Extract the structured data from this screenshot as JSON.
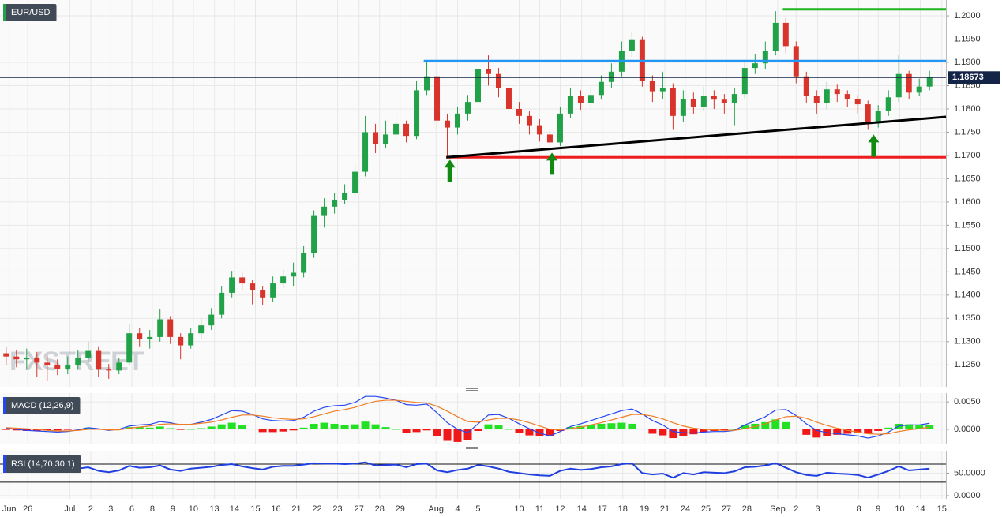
{
  "chart_data": [
    {
      "type": "candlestick",
      "label": "EUR/USD",
      "watermark": "FXSTREET",
      "up_color": "#21a148",
      "down_color": "#d9342b",
      "open": [
        1.1275,
        1.1268,
        1.1262,
        1.1265,
        1.1255,
        1.125,
        1.1242,
        1.125,
        1.1265,
        1.128,
        1.124,
        1.1238,
        1.1255,
        1.1318,
        1.1305,
        1.131,
        1.1348,
        1.131,
        1.1292,
        1.1318,
        1.1335,
        1.1358,
        1.1405,
        1.1438,
        1.1425,
        1.141,
        1.1395,
        1.1425,
        1.144,
        1.1448,
        1.149,
        1.157,
        1.159,
        1.1605,
        1.162,
        1.1665,
        1.175,
        1.1725,
        1.1745,
        1.1768,
        1.1742,
        1.184,
        1.187,
        1.1775,
        1.176,
        1.179,
        1.1815,
        1.1885,
        1.1875,
        1.1845,
        1.18,
        1.1785,
        1.1765,
        1.1745,
        1.1728,
        1.179,
        1.1828,
        1.1812,
        1.183,
        1.1858,
        1.188,
        1.1925,
        1.1948,
        1.186,
        1.1838,
        1.1845,
        1.1785,
        1.1822,
        1.1805,
        1.1828,
        1.182,
        1.1812,
        1.1832,
        1.1888,
        1.1898,
        1.1925,
        1.1985,
        1.1935,
        1.187,
        1.1828,
        1.1812,
        1.1842,
        1.1832,
        1.1822,
        1.181,
        1.1772,
        1.1795,
        1.1825,
        1.1875,
        1.1835,
        1.1848
      ],
      "high": [
        1.129,
        1.1282,
        1.1285,
        1.1278,
        1.127,
        1.1262,
        1.1268,
        1.1282,
        1.13,
        1.129,
        1.1252,
        1.1265,
        1.1338,
        1.133,
        1.1325,
        1.137,
        1.1355,
        1.1318,
        1.133,
        1.135,
        1.1372,
        1.142,
        1.1452,
        1.1448,
        1.1432,
        1.142,
        1.144,
        1.1455,
        1.147,
        1.1505,
        1.1582,
        1.1608,
        1.162,
        1.1638,
        1.168,
        1.1785,
        1.1768,
        1.1775,
        1.179,
        1.1775,
        1.186,
        1.1905,
        1.188,
        1.179,
        1.1805,
        1.183,
        1.19,
        1.1915,
        1.1888,
        1.1855,
        1.1815,
        1.1795,
        1.1778,
        1.1755,
        1.1805,
        1.1845,
        1.184,
        1.1848,
        1.1872,
        1.1898,
        1.1945,
        1.1965,
        1.1955,
        1.1872,
        1.188,
        1.1855,
        1.184,
        1.1835,
        1.1848,
        1.184,
        1.1832,
        1.1845,
        1.1905,
        1.1918,
        1.1945,
        1.201,
        1.1995,
        1.1945,
        1.188,
        1.184,
        1.1858,
        1.1852,
        1.184,
        1.183,
        1.1818,
        1.1808,
        1.184,
        1.1915,
        1.1882,
        1.1865,
        1.1882
      ],
      "low": [
        1.125,
        1.1245,
        1.124,
        1.1225,
        1.1215,
        1.1228,
        1.123,
        1.124,
        1.1255,
        1.1225,
        1.122,
        1.123,
        1.125,
        1.129,
        1.1285,
        1.13,
        1.1295,
        1.1262,
        1.1285,
        1.1305,
        1.1325,
        1.135,
        1.1395,
        1.141,
        1.138,
        1.1378,
        1.1385,
        1.1415,
        1.142,
        1.1438,
        1.148,
        1.1545,
        1.1575,
        1.1595,
        1.161,
        1.1655,
        1.1705,
        1.1715,
        1.173,
        1.1728,
        1.1735,
        1.183,
        1.1765,
        1.1695,
        1.1745,
        1.1775,
        1.1805,
        1.185,
        1.1825,
        1.1785,
        1.1768,
        1.1745,
        1.173,
        1.1712,
        1.172,
        1.178,
        1.1798,
        1.18,
        1.182,
        1.1845,
        1.187,
        1.1912,
        1.1848,
        1.1815,
        1.1822,
        1.1755,
        1.1772,
        1.179,
        1.1795,
        1.18,
        1.179,
        1.1765,
        1.1822,
        1.1875,
        1.1885,
        1.1915,
        1.192,
        1.1855,
        1.1812,
        1.179,
        1.18,
        1.1815,
        1.1805,
        1.179,
        1.1755,
        1.176,
        1.1785,
        1.1815,
        1.1822,
        1.1828,
        1.184
      ],
      "close": [
        1.1268,
        1.1262,
        1.1265,
        1.1255,
        1.125,
        1.1242,
        1.125,
        1.1265,
        1.128,
        1.124,
        1.1238,
        1.1255,
        1.1318,
        1.1305,
        1.131,
        1.1348,
        1.131,
        1.1292,
        1.1318,
        1.1335,
        1.1358,
        1.1405,
        1.1438,
        1.1425,
        1.141,
        1.1395,
        1.1425,
        1.144,
        1.1448,
        1.149,
        1.157,
        1.159,
        1.1605,
        1.162,
        1.1665,
        1.175,
        1.1725,
        1.1745,
        1.1768,
        1.1742,
        1.184,
        1.187,
        1.1775,
        1.176,
        1.179,
        1.1815,
        1.1885,
        1.1875,
        1.1845,
        1.18,
        1.1785,
        1.1765,
        1.1745,
        1.1728,
        1.179,
        1.1828,
        1.1812,
        1.183,
        1.1858,
        1.188,
        1.1925,
        1.1948,
        1.186,
        1.1838,
        1.1845,
        1.1785,
        1.1822,
        1.1805,
        1.1828,
        1.182,
        1.1812,
        1.1832,
        1.1888,
        1.1898,
        1.1925,
        1.1985,
        1.1935,
        1.187,
        1.1828,
        1.1812,
        1.1842,
        1.1832,
        1.1822,
        1.181,
        1.1772,
        1.1795,
        1.1825,
        1.1875,
        1.1835,
        1.1848,
        1.1868
      ],
      "xlim": [
        -0.6,
        91.6
      ],
      "xticks": [
        {
          "value": 0.3,
          "label": "Jun"
        },
        {
          "value": 2.1,
          "label": "26"
        },
        {
          "value": 6.2,
          "label": "Jul"
        },
        {
          "value": 8.25,
          "label": "2"
        },
        {
          "value": 10.2,
          "label": "3"
        },
        {
          "value": 12.25,
          "label": "6"
        },
        {
          "value": 14.25,
          "label": "8"
        },
        {
          "value": 16.25,
          "label": "9"
        },
        {
          "value": 18.25,
          "label": "10"
        },
        {
          "value": 20.3,
          "label": "13"
        },
        {
          "value": 22.25,
          "label": "14"
        },
        {
          "value": 24.3,
          "label": "15"
        },
        {
          "value": 26.3,
          "label": "16"
        },
        {
          "value": 28.3,
          "label": "21"
        },
        {
          "value": 30.3,
          "label": "22"
        },
        {
          "value": 32.3,
          "label": "23"
        },
        {
          "value": 34.4,
          "label": "27"
        },
        {
          "value": 36.4,
          "label": "28"
        },
        {
          "value": 38.4,
          "label": "29"
        },
        {
          "value": 41.9,
          "label": "Aug"
        },
        {
          "value": 44,
          "label": "4"
        },
        {
          "value": 46,
          "label": "5"
        },
        {
          "value": 50,
          "label": "10"
        },
        {
          "value": 52,
          "label": "11"
        },
        {
          "value": 54,
          "label": "12"
        },
        {
          "value": 56.1,
          "label": "14"
        },
        {
          "value": 58.1,
          "label": "17"
        },
        {
          "value": 60.1,
          "label": "18"
        },
        {
          "value": 62.2,
          "label": "19"
        },
        {
          "value": 64.2,
          "label": "21"
        },
        {
          "value": 66.2,
          "label": "24"
        },
        {
          "value": 68.2,
          "label": "25"
        },
        {
          "value": 70.2,
          "label": "27"
        },
        {
          "value": 72.2,
          "label": "28"
        },
        {
          "value": 75.2,
          "label": "Sep"
        },
        {
          "value": 77,
          "label": "2"
        },
        {
          "value": 79.1,
          "label": "3"
        },
        {
          "value": 83.1,
          "label": "8"
        },
        {
          "value": 85,
          "label": "9"
        },
        {
          "value": 87.1,
          "label": "10"
        },
        {
          "value": 89.1,
          "label": "14"
        },
        {
          "value": 91.2,
          "label": "15"
        }
      ],
      "ylim": [
        1.1203,
        1.2034
      ],
      "yticks": [
        {
          "value": 1.125,
          "label": "1.1250"
        },
        {
          "value": 1.13,
          "label": "1.1300"
        },
        {
          "value": 1.135,
          "label": "1.1350"
        },
        {
          "value": 1.14,
          "label": "1.1400"
        },
        {
          "value": 1.145,
          "label": "1.1450"
        },
        {
          "value": 1.15,
          "label": "1.1500"
        },
        {
          "value": 1.155,
          "label": "1.1550"
        },
        {
          "value": 1.16,
          "label": "1.1600"
        },
        {
          "value": 1.165,
          "label": "1.1650"
        },
        {
          "value": 1.17,
          "label": "1.1700"
        },
        {
          "value": 1.175,
          "label": "1.1750"
        },
        {
          "value": 1.18,
          "label": "1.1800"
        },
        {
          "value": 1.185,
          "label": "1.1850"
        },
        {
          "value": 1.19,
          "label": "1.1900"
        },
        {
          "value": 1.195,
          "label": "1.1950"
        },
        {
          "value": 1.2,
          "label": "1.2000"
        }
      ],
      "grid": true,
      "last_price": 1.18673,
      "last_price_color": "#142447",
      "lines": [
        {
          "x": [
            40.7,
            91.6
          ],
          "y": [
            1.1903,
            1.1903
          ],
          "color": "#2196f3"
        },
        {
          "x": [
            75.7,
            91.6
          ],
          "y": [
            1.2014,
            1.2014
          ],
          "color": "#1fb31f"
        },
        {
          "x": [
            42.9,
            91.6
          ],
          "y": [
            1.1696,
            1.1696
          ],
          "color": "#ee1c1c"
        },
        {
          "x": [
            42.9,
            91.6
          ],
          "y": [
            1.1696,
            1.1783
          ],
          "color": "#000000"
        }
      ],
      "arrows": [
        {
          "x": 43.25,
          "y": 1.1691
        },
        {
          "x": 53.2,
          "y": 1.1706
        },
        {
          "x": 84.55,
          "y": 1.1745
        }
      ],
      "arrow_color": "#118a11"
    },
    {
      "type": "macd",
      "label": "MACD (12,26,9)",
      "ylim": [
        -0.0026,
        0.0066
      ],
      "yticks": [
        {
          "value": 0.005,
          "label": "0.0050"
        },
        {
          "value": 0,
          "label": "0.0000"
        }
      ],
      "lines": [
        {
          "color": "#2547f0",
          "values": [
            0.0002,
            0,
            -0.0002,
            -0.0003,
            -0.0004,
            -0.0005,
            -0.0004,
            -0.0001,
            0.0003,
            0.0001,
            -0.0002,
            0,
            0.0006,
            0.0008,
            0.0009,
            0.0014,
            0.0012,
            0.0008,
            0.0009,
            0.0013,
            0.0018,
            0.0026,
            0.0034,
            0.0033,
            0.0027,
            0.0019,
            0.0016,
            0.0015,
            0.0016,
            0.0022,
            0.0033,
            0.004,
            0.0043,
            0.0044,
            0.0049,
            0.006,
            0.006,
            0.0057,
            0.0053,
            0.0045,
            0.0044,
            0.0046,
            0.003,
            0.0012,
            0,
            -0.0006,
            0.001,
            0.0026,
            0.0027,
            0.002,
            0.001,
            0.0001,
            -0.0007,
            -0.0012,
            -0.0004,
            0.0005,
            0.001,
            0.0016,
            0.0022,
            0.0028,
            0.0034,
            0.0037,
            0.0028,
            0.0016,
            0.0008,
            -0.0004,
            -0.0006,
            -0.0007,
            -0.0005,
            -0.0004,
            -0.0004,
            -0.0002,
            0.0008,
            0.0015,
            0.0023,
            0.0035,
            0.0036,
            0.0025,
            0.001,
            -0.0002,
            -0.0006,
            -0.0008,
            -0.001,
            -0.0012,
            -0.0016,
            -0.0012,
            -0.0005,
            0.0006,
            0.0008,
            0.0008,
            0.0011
          ]
        },
        {
          "color": "#f07c22",
          "values": [
            0.0003,
            0.0002,
            0.0001,
            0,
            -0.0002,
            -0.0003,
            -0.0003,
            -0.0002,
            0,
            0,
            -0.0001,
            -0.0001,
            0.0002,
            0.0004,
            0.0006,
            0.0009,
            0.001,
            0.0009,
            0.0009,
            0.0011,
            0.0013,
            0.0017,
            0.0022,
            0.0026,
            0.0026,
            0.0024,
            0.0021,
            0.0019,
            0.0018,
            0.0019,
            0.0023,
            0.0028,
            0.0033,
            0.0036,
            0.004,
            0.0046,
            0.0051,
            0.0053,
            0.0053,
            0.0051,
            0.0049,
            0.0048,
            0.0042,
            0.0033,
            0.0023,
            0.0014,
            0.0013,
            0.0017,
            0.002,
            0.002,
            0.0017,
            0.0012,
            0.0006,
            0,
            -0.0001,
            0.0001,
            0.0004,
            0.0008,
            0.0012,
            0.0017,
            0.0022,
            0.0027,
            0.0027,
            0.0024,
            0.0019,
            0.0012,
            0.0006,
            0.0002,
            0,
            -0.0001,
            -0.0002,
            -0.0002,
            0.0001,
            0.0005,
            0.001,
            0.0017,
            0.0023,
            0.0024,
            0.002,
            0.0013,
            0.0007,
            0.0002,
            -0.0002,
            -0.0005,
            -0.0008,
            -0.0009,
            -0.0008,
            -0.0004,
            -0.0001,
            0.0001,
            0.0004
          ]
        }
      ],
      "histogram": {
        "up_color": "#22e022",
        "down_color": "#f01818",
        "values": [
          -0.0001,
          -0.0002,
          -0.0003,
          -0.0003,
          -0.0002,
          -0.0002,
          -0.0001,
          0.0001,
          0.0003,
          0.0001,
          -0.0001,
          0.0001,
          0.0004,
          0.0004,
          0.0003,
          0.0005,
          0.0002,
          -0.0001,
          0,
          0.0002,
          0.0005,
          0.0009,
          0.0012,
          0.0007,
          0.0001,
          -0.0005,
          -0.0005,
          -0.0004,
          -0.0002,
          0.0003,
          0.001,
          0.0012,
          0.001,
          0.0008,
          0.0009,
          0.0014,
          0.0009,
          0.0004,
          0,
          -0.0006,
          -0.0005,
          -0.0002,
          -0.0012,
          -0.0021,
          -0.0023,
          -0.002,
          -0.0003,
          0.0009,
          0.0007,
          0,
          -0.0007,
          -0.0011,
          -0.0013,
          -0.0012,
          -0.0003,
          0.0004,
          0.0006,
          0.0008,
          0.001,
          0.0011,
          0.0012,
          0.001,
          0.0001,
          -0.0008,
          -0.0011,
          -0.0016,
          -0.0012,
          -0.0009,
          -0.0005,
          -0.0003,
          -0.0002,
          0,
          0.0007,
          0.001,
          0.0013,
          0.0018,
          0.0013,
          0.0001,
          -0.001,
          -0.0015,
          -0.0013,
          -0.001,
          -0.0008,
          -0.0007,
          -0.0008,
          -0.0003,
          0.0003,
          0.001,
          0.0009,
          0.0007,
          0.0007
        ]
      }
    },
    {
      "type": "line",
      "label": "RSI (14,70,30,1)",
      "color": "#1f3fe0",
      "ylim": [
        -7,
        98
      ],
      "yticks": [
        {
          "value": 50,
          "label": "50.0000"
        },
        {
          "value": 0,
          "label": "0.0000"
        }
      ],
      "levels": [
        70,
        30
      ],
      "values": [
        55,
        53,
        57,
        60,
        58,
        55,
        56,
        60,
        63,
        55,
        52,
        56,
        66,
        62,
        63,
        67,
        58,
        55,
        60,
        62,
        64,
        68,
        70,
        65,
        61,
        58,
        64,
        66,
        66,
        69,
        72,
        71,
        71,
        70,
        71,
        74,
        67,
        68,
        69,
        63,
        70,
        71,
        56,
        52,
        57,
        60,
        68,
        65,
        60,
        53,
        50,
        47,
        45,
        44,
        55,
        60,
        57,
        59,
        63,
        65,
        70,
        72,
        50,
        47,
        49,
        40,
        50,
        47,
        52,
        51,
        50,
        54,
        63,
        64,
        67,
        72,
        62,
        52,
        46,
        44,
        51,
        49,
        48,
        46,
        40,
        47,
        55,
        65,
        56,
        58,
        60
      ]
    }
  ]
}
